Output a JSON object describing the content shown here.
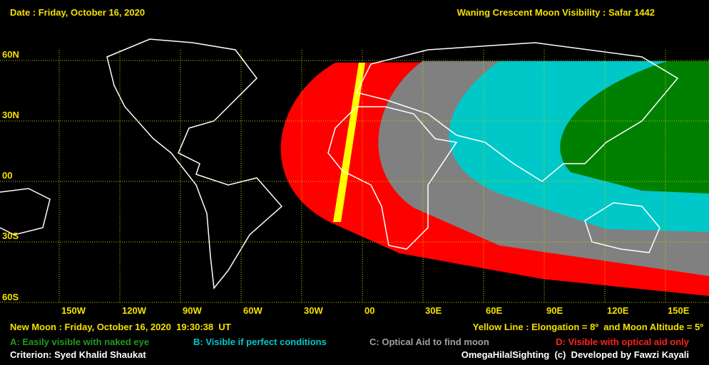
{
  "header": {
    "date": "Date : Friday, October 16, 2020",
    "title": "Waning Crescent Moon Visibility : Safar 1442"
  },
  "map": {
    "lat_labels": [
      "60N",
      "30N",
      "00",
      "30S",
      "60S"
    ],
    "lon_labels": [
      "150W",
      "120W",
      "90W",
      "60W",
      "30W",
      "00",
      "30E",
      "60E",
      "90E",
      "120E",
      "150E"
    ]
  },
  "footer": {
    "new_moon": "New Moon : Friday, October 16, 2020  19:30:38  UT",
    "yellow_line": "Yellow Line : Elongation = 8º  and Moon Altitude = 5º",
    "legend": [
      "A: Easily visible with naked eye",
      "B: Visible if perfect conditions",
      "C: Optical Aid to find moon",
      "D: Visible with optical aid only"
    ],
    "criterion": "Criterion: Syed Khalid Shaukat",
    "credit": "OmegaHilalSighting  (c)  Developed by Fawzi Kayali"
  }
}
